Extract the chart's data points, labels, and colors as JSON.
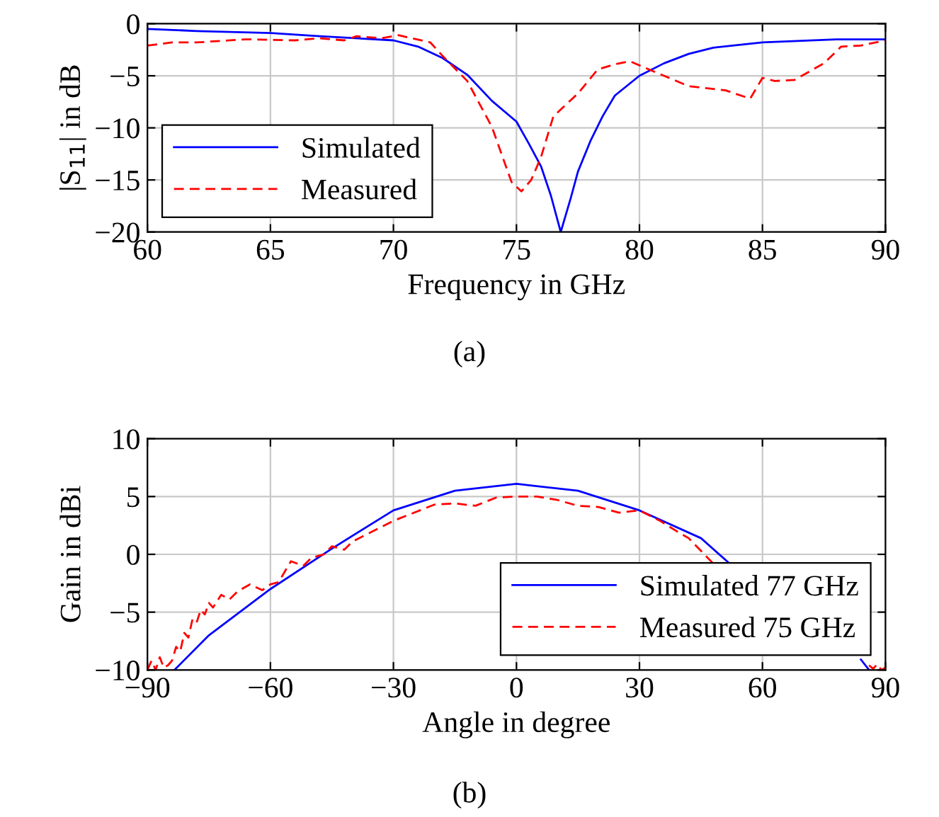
{
  "chart_data": [
    {
      "type": "line",
      "xlabel": "Frequency in GHz",
      "ylabel": "|S$_{11}$| in dB",
      "annotations": [
        "(a)"
      ],
      "xlim": [
        60,
        90
      ],
      "ylim": [
        -20,
        0
      ],
      "xticks": [
        60,
        65,
        70,
        75,
        80,
        85,
        90
      ],
      "yticks": [
        -20,
        -15,
        -10,
        -5,
        0
      ],
      "grid": true,
      "legend": "bottom left",
      "series": [
        {
          "name": "Simulated",
          "color": "#0000ff",
          "line_style": "solid",
          "x": [
            60,
            62,
            65,
            67,
            70,
            71,
            72,
            73,
            74,
            75,
            75.5,
            76,
            76.4,
            76.8,
            77.2,
            77.5,
            78,
            78.5,
            79,
            80,
            81,
            82,
            83,
            85,
            88,
            90
          ],
          "values": [
            -0.5,
            -0.7,
            -0.9,
            -1.2,
            -1.6,
            -2.2,
            -3.3,
            -4.9,
            -7.4,
            -9.4,
            -11.5,
            -13.7,
            -16.5,
            -20,
            -16.8,
            -14.2,
            -11.3,
            -8.9,
            -6.9,
            -5,
            -3.8,
            -2.9,
            -2.3,
            -1.8,
            -1.5,
            -1.5
          ]
        },
        {
          "name": "Measured",
          "color": "#ff0000",
          "line_style": "dashed",
          "x": [
            60,
            61,
            62,
            64,
            66,
            67,
            68,
            68.5,
            69.5,
            70.2,
            71.5,
            72,
            73,
            74,
            74.8,
            75.2,
            75.6,
            76,
            76.5,
            77.5,
            78.3,
            79,
            79.6,
            80.5,
            82,
            83.5,
            84.5,
            85,
            85.5,
            86.3,
            87.5,
            88.2,
            89,
            90
          ],
          "values": [
            -2.1,
            -1.8,
            -1.8,
            -1.5,
            -1.6,
            -1.4,
            -1.6,
            -1.2,
            -1.4,
            -1.1,
            -1.8,
            -3.1,
            -5.5,
            -9.9,
            -15.2,
            -16.1,
            -15,
            -12.8,
            -8.9,
            -6.7,
            -4.4,
            -3.9,
            -3.6,
            -4.5,
            -6,
            -6.4,
            -7.2,
            -5.2,
            -5.5,
            -5.4,
            -3.8,
            -2.2,
            -2.1,
            -1.6
          ]
        }
      ]
    },
    {
      "type": "line",
      "xlabel": "Angle in degree",
      "ylabel": "Gain in dBi",
      "annotations": [
        "(b)"
      ],
      "xlim": [
        -90,
        90
      ],
      "ylim": [
        -10,
        10
      ],
      "xticks": [
        -90,
        -60,
        -30,
        0,
        30,
        60,
        90
      ],
      "yticks": [
        -10,
        -5,
        0,
        5,
        10
      ],
      "grid": true,
      "legend": "bottom right",
      "series": [
        {
          "name": "Simulated 77 GHz",
          "color": "#0000ff",
          "line_style": "solid",
          "x": [
            -83.4,
            -75,
            -60,
            -45,
            -30,
            -15,
            0,
            15,
            30,
            45,
            52,
            60,
            70,
            84,
            86
          ],
          "values": [
            -10,
            -7,
            -3,
            0.5,
            3.8,
            5.5,
            6.1,
            5.5,
            3.8,
            1.4,
            -0.8,
            null,
            null,
            -9.1,
            -10
          ]
        },
        {
          "name": "Measured 75 GHz",
          "color": "#ff0000",
          "line_style": "dashed",
          "x": [
            -90,
            -89,
            -88,
            -87,
            -86,
            -85,
            -84,
            -83,
            -82,
            -81,
            -80,
            -79,
            -78,
            -77,
            -76,
            -75,
            -74,
            -72,
            -70,
            -68,
            -65,
            -62,
            -60,
            -58,
            -55,
            -52,
            -50,
            -47,
            -45,
            -42,
            -40,
            -35,
            -30,
            -25,
            -20,
            -15,
            -10,
            -5,
            0,
            5,
            10,
            15,
            20,
            25,
            30,
            35,
            40,
            42,
            45,
            48,
            50,
            52,
            85,
            86,
            87,
            88,
            89,
            90
          ],
          "values": [
            -10,
            -9.2,
            -10,
            -8.9,
            -9.8,
            -9.6,
            -9.2,
            -8,
            -8.4,
            -6.8,
            -7.2,
            -5.6,
            -5.9,
            -4.8,
            -5.2,
            -4.2,
            -4.6,
            -3.5,
            -3.9,
            -3.2,
            -2.6,
            -3.1,
            -2.6,
            -2.4,
            -0.6,
            -1,
            -0.3,
            0,
            0.7,
            0.4,
            1.1,
            2,
            2.9,
            3.6,
            4.3,
            4.4,
            4.2,
            4.9,
            5,
            5,
            4.7,
            4.2,
            4.1,
            3.6,
            3.8,
            2.9,
            1.8,
            1.4,
            0.3,
            -0.8,
            null,
            null,
            null,
            -9.6,
            -9.9,
            -9.5,
            -10,
            -9.8
          ]
        }
      ]
    }
  ]
}
